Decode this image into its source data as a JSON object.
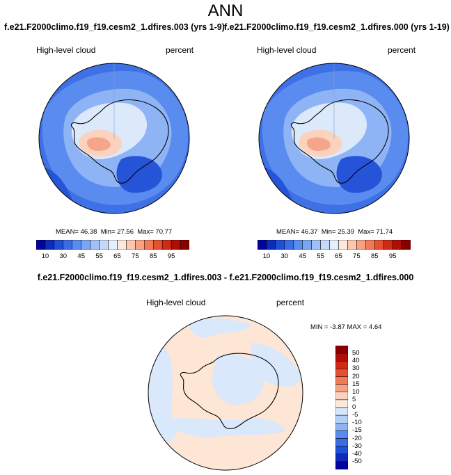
{
  "title": "ANN",
  "panel_left": {
    "case": "f.e21.F2000climo.f19_f19.cesm2_1.dfires.003 (yrs 1-9)",
    "variable": "High-level cloud",
    "units": "percent",
    "stats": {
      "mean_label": "MEAN=",
      "mean": "46.38",
      "min_label": "Min=",
      "min": "27.56",
      "max_label": "Max=",
      "max": "70.77"
    }
  },
  "panel_right": {
    "case": "f.e21.F2000climo.f19_f19.cesm2_1.dfires.000 (yrs 1-19)",
    "variable": "High-level cloud",
    "units": "percent",
    "stats": {
      "mean_label": "MEAN=",
      "mean": "46.37",
      "min_label": "Min=",
      "min": "25.39",
      "max_label": "Max=",
      "max": "71.74"
    }
  },
  "panel_diff": {
    "case": "f.e21.F2000climo.f19_f19.cesm2_1.dfires.003 - f.e21.F2000climo.f19_f19.cesm2_1.dfires.000",
    "variable": "High-level cloud",
    "units": "percent",
    "stats": {
      "min_label": "MIN =",
      "min": "-3.87",
      "max_label": "MAX =",
      "max": "4.64"
    }
  },
  "colorbar_abs": {
    "colors": [
      "#02049e",
      "#0c2bbb",
      "#1f4fd6",
      "#3a6ce6",
      "#5a8cef",
      "#7aa6f3",
      "#a1c0f7",
      "#c5d8fa",
      "#e4eefc",
      "#fde8dc",
      "#fbc7b0",
      "#f8a283",
      "#f27a56",
      "#e6502f",
      "#d02a14",
      "#b00d06",
      "#8a0000"
    ],
    "ticks": [
      "10",
      "30",
      "45",
      "55",
      "65",
      "75",
      "85",
      "95"
    ]
  },
  "colorbar_diff": {
    "colors": [
      "#8a0000",
      "#b00d06",
      "#d02a14",
      "#e6502f",
      "#f27a56",
      "#f8a283",
      "#fbd2bd",
      "#fde8dc",
      "#d6e6fb",
      "#b4cff8",
      "#8cb3f4",
      "#5a8cef",
      "#3a6ce6",
      "#1f4fd6",
      "#0c2bbb",
      "#02049e"
    ],
    "ticks": [
      "50",
      "40",
      "30",
      "20",
      "15",
      "10",
      "5",
      "0",
      "-5",
      "-10",
      "-15",
      "-20",
      "-30",
      "-40",
      "-50"
    ]
  },
  "colors": {
    "ocean_abs": "#3e70e6",
    "ocean_deep": "#2654d8",
    "mid_blue": "#5a8cef",
    "light_blue": "#8fb4f5",
    "pale": "#dce9fb",
    "warm_light": "#fbd2bd",
    "warm_mid": "#f5a68a",
    "diff_pos": "#fde6d6",
    "diff_neg": "#d9e8fb",
    "coast": "#000000"
  }
}
